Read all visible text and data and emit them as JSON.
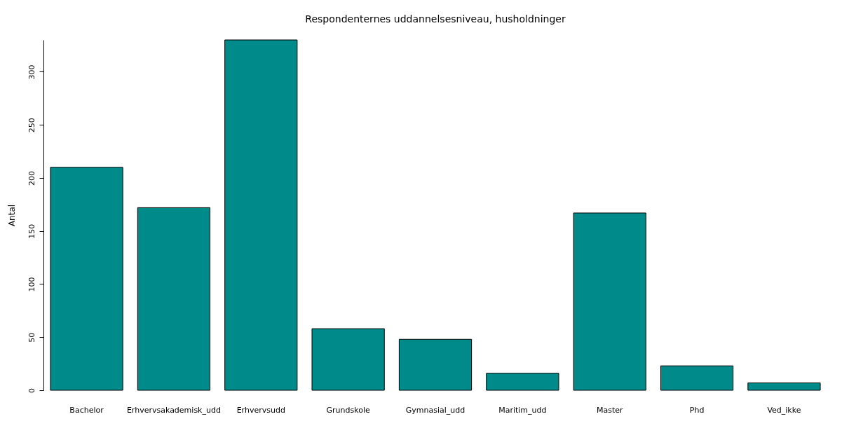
{
  "chart_data": {
    "type": "bar",
    "title": "Respondenternes uddannelsesniveau, husholdninger",
    "ylabel": "Antal",
    "categories": [
      "Bachelor",
      "Erhvervsakademisk_udd",
      "Erhvervsudd",
      "Grundskole",
      "Gymnasial_udd",
      "Maritim_udd",
      "Master",
      "Phd",
      "Ved_ikke"
    ],
    "values": [
      210,
      172,
      330,
      58,
      48,
      16,
      167,
      23,
      7
    ],
    "color": "#008b8b",
    "ylim": [
      0,
      330
    ],
    "yticks": [
      0,
      50,
      100,
      150,
      200,
      250,
      300
    ],
    "grid": false
  }
}
